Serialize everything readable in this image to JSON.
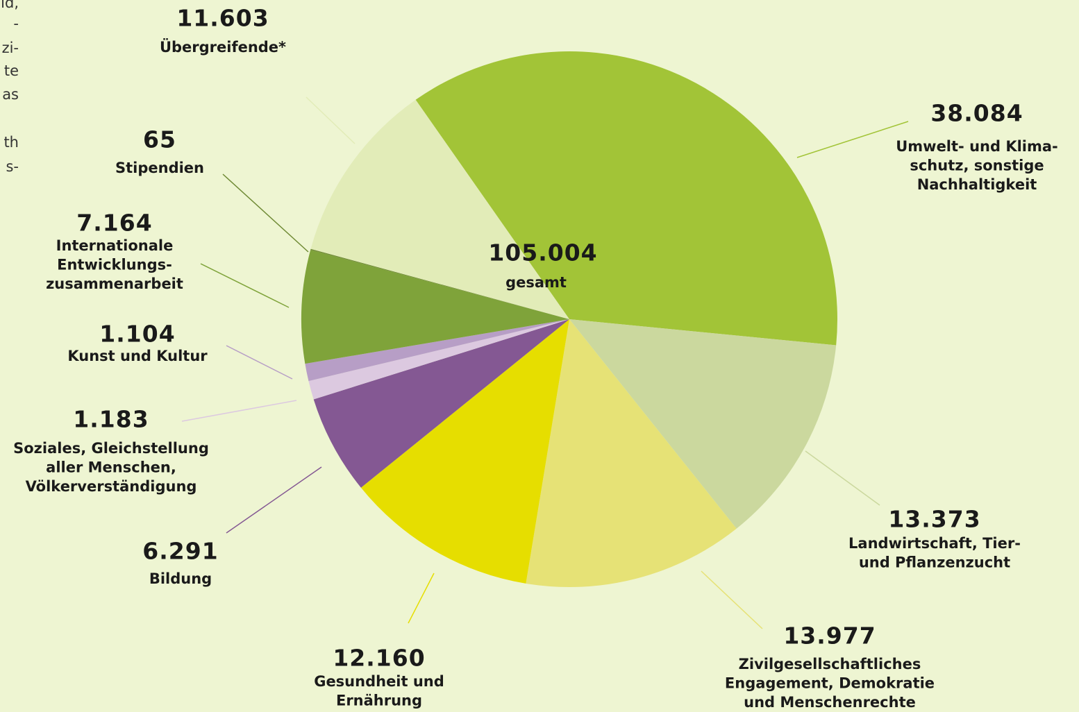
{
  "chart_data": {
    "type": "pie",
    "categories": [
      [
        "Umwelt- und Klima-",
        "schutz, sonstige",
        "Nachhaltigkeit"
      ],
      [
        "Landwirtschaft, Tier-",
        "und Pflanzenzucht"
      ],
      [
        "Zivilgesellschaftliches",
        "Engagement, Demokratie",
        "und Menschenrechte"
      ],
      [
        "Gesundheit und",
        "Ernährung"
      ],
      [
        "Bildung"
      ],
      [
        "Soziales, Gleichstellung",
        "aller Menschen,",
        "Völkerverständigung"
      ],
      [
        "Kunst und Kultur"
      ],
      [
        "Internationale",
        "Entwicklungs-",
        "zusammenarbeit"
      ],
      [
        "Stipendien"
      ],
      [
        "Übergreifende*"
      ]
    ],
    "values": [
      38084,
      13373,
      13977,
      12160,
      6291,
      1183,
      1104,
      7164,
      65,
      11603
    ],
    "value_labels": [
      "38.084",
      "13.373",
      "13.977",
      "12.160",
      "6.291",
      "1.183",
      "1.104",
      "7.164",
      "65",
      "11.603"
    ],
    "colors": [
      "#a2c437",
      "#cbd89e",
      "#e6e276",
      "#e6de00",
      "#845893",
      "#dcc9e0",
      "#b79ec6",
      "#7fa33a",
      "#6f8a35",
      "#e2ecb8"
    ],
    "total": {
      "value": 105004,
      "label": "105.004",
      "name": "gesamt"
    }
  },
  "side_text": [
    "ld,",
    "-",
    "zi-",
    "te",
    "as",
    "th",
    "s-"
  ]
}
